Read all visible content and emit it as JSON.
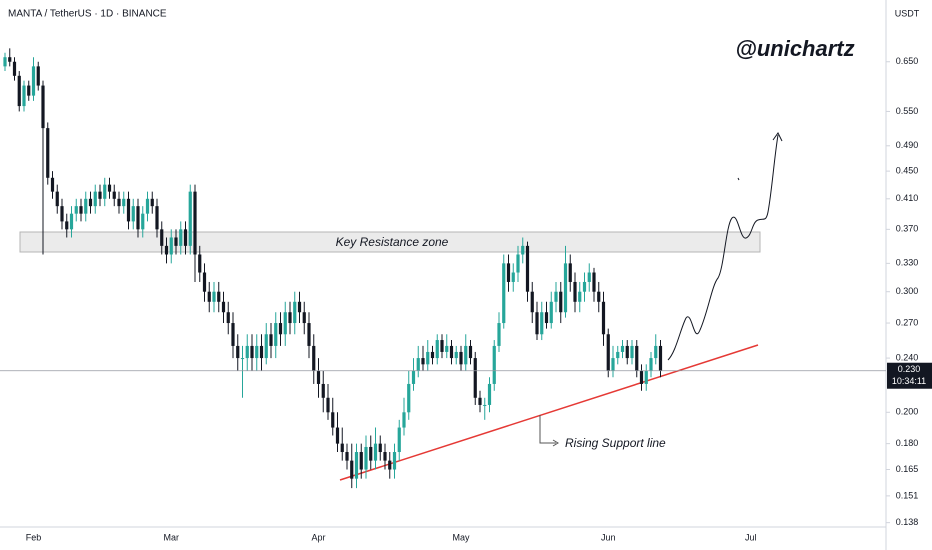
{
  "chart_data": {
    "type": "candlestick",
    "title": "MANTA / TetherUS · 1D · BINANCE",
    "y_unit": "USDT",
    "watermark": "@unichartz",
    "annotations": {
      "resistance": "Key Resistance zone",
      "support": "Rising Support line"
    },
    "log_scale": true,
    "grid": false,
    "up_color": "#26a69a",
    "down_color": "#131722",
    "ylim": [
      0.136,
      0.8
    ],
    "yticks": [
      {
        "value": 0.65,
        "label": "0.650"
      },
      {
        "value": 0.55,
        "label": "0.550"
      },
      {
        "value": 0.49,
        "label": "0.490"
      },
      {
        "value": 0.45,
        "label": "0.450"
      },
      {
        "value": 0.41,
        "label": "0.410"
      },
      {
        "value": 0.37,
        "label": "0.370"
      },
      {
        "value": 0.33,
        "label": "0.330"
      },
      {
        "value": 0.3,
        "label": "0.300"
      },
      {
        "value": 0.27,
        "label": "0.270"
      },
      {
        "value": 0.24,
        "label": "0.240"
      },
      {
        "value": 0.2,
        "label": "0.200"
      },
      {
        "value": 0.18,
        "label": "0.180"
      },
      0.165,
      0.151,
      0.138
    ],
    "last_price": {
      "value": 0.23,
      "label": "0.230"
    },
    "countdown": "10:34:11",
    "categories": [
      null,
      null,
      null,
      null,
      null,
      null,
      "Feb",
      null,
      null,
      null,
      null,
      null,
      null,
      null,
      null,
      null,
      null,
      null,
      null,
      null,
      null,
      null,
      null,
      null,
      null,
      null,
      null,
      null,
      null,
      null,
      null,
      null,
      null,
      null,
      null,
      "Mar",
      null,
      null,
      null,
      null,
      null,
      null,
      null,
      null,
      null,
      null,
      null,
      null,
      null,
      null,
      null,
      null,
      null,
      null,
      null,
      null,
      null,
      null,
      null,
      null,
      null,
      null,
      null,
      null,
      null,
      null,
      "Apr",
      null,
      null,
      null,
      null,
      null,
      null,
      null,
      null,
      null,
      null,
      null,
      null,
      null,
      null,
      null,
      null,
      null,
      null,
      null,
      null,
      null,
      null,
      null,
      null,
      null,
      null,
      null,
      null,
      null,
      "May",
      null,
      null,
      null,
      null,
      null,
      null,
      null,
      null,
      null,
      null,
      null,
      null,
      null,
      null,
      null,
      null,
      null,
      null,
      null,
      null,
      null,
      null,
      null,
      null,
      null,
      null,
      null,
      null,
      null,
      null,
      "Jun",
      null,
      null,
      null,
      null,
      null,
      null,
      null,
      null,
      null,
      null,
      null,
      null,
      null,
      null,
      null,
      null,
      null,
      null,
      null,
      null,
      null,
      null,
      null,
      null,
      null,
      null,
      null,
      null,
      null,
      "Jul",
      null,
      null,
      null,
      null,
      null,
      null,
      null,
      null,
      null,
      null,
      null,
      null,
      null,
      null,
      null,
      null,
      null,
      null,
      null,
      null,
      null,
      null,
      null,
      null,
      null,
      null,
      null,
      null
    ],
    "open": [
      0.64,
      0.66,
      0.65,
      0.62,
      0.56,
      0.6,
      0.58,
      0.64,
      0.6,
      0.52,
      0.44,
      0.42,
      0.4,
      0.38,
      0.37,
      0.39,
      0.4,
      0.39,
      0.41,
      0.4,
      0.42,
      0.41,
      0.43,
      0.42,
      0.41,
      0.4,
      0.41,
      0.38,
      0.4,
      0.37,
      0.39,
      0.41,
      0.4,
      0.37,
      0.35,
      0.34,
      0.36,
      0.35,
      0.37,
      0.35,
      0.42,
      0.34,
      0.32,
      0.3,
      0.29,
      0.3,
      0.29,
      0.28,
      0.27,
      0.25,
      0.24,
      0.24,
      0.25,
      0.24,
      0.25,
      0.24,
      0.26,
      0.25,
      0.27,
      0.26,
      0.28,
      0.27,
      0.29,
      0.28,
      0.27,
      0.25,
      0.23,
      0.22,
      0.21,
      0.2,
      0.19,
      0.18,
      0.175,
      0.17,
      0.16,
      0.175,
      0.165,
      0.178,
      0.17,
      0.18,
      0.175,
      0.17,
      0.165,
      0.175,
      0.19,
      0.2,
      0.22,
      0.23,
      0.24,
      0.235,
      0.245,
      0.24,
      0.255,
      0.245,
      0.25,
      0.24,
      0.245,
      0.235,
      0.25,
      0.24,
      0.21,
      0.205,
      0.205,
      0.22,
      0.25,
      0.27,
      0.33,
      0.31,
      0.32,
      0.34,
      0.35,
      0.3,
      0.28,
      0.26,
      0.28,
      0.27,
      0.29,
      0.3,
      0.28,
      0.33,
      0.31,
      0.29,
      0.3,
      0.31,
      0.32,
      0.3,
      0.29,
      0.26,
      0.23,
      0.24,
      0.245,
      0.25,
      0.24,
      0.25,
      0.23,
      0.22,
      0.23,
      0.24,
      0.25,
      null,
      null,
      null,
      null,
      null,
      null,
      null,
      null,
      null,
      null,
      null,
      null,
      null,
      null,
      null,
      null,
      null,
      null,
      null,
      null,
      null,
      null,
      null,
      null,
      null,
      null,
      null,
      null,
      null,
      null,
      null,
      null,
      null,
      null,
      null,
      null,
      null,
      null,
      null,
      null,
      null,
      null,
      null,
      null,
      null,
      null,
      null
    ],
    "high": [
      0.67,
      0.68,
      0.66,
      0.63,
      0.61,
      0.61,
      0.66,
      0.65,
      0.61,
      0.53,
      0.45,
      0.43,
      0.41,
      0.39,
      0.4,
      0.41,
      0.41,
      0.42,
      0.42,
      0.43,
      0.43,
      0.44,
      0.44,
      0.43,
      0.42,
      0.42,
      0.42,
      0.41,
      0.41,
      0.4,
      0.42,
      0.42,
      0.41,
      0.38,
      0.36,
      0.37,
      0.37,
      0.38,
      0.38,
      0.43,
      0.43,
      0.35,
      0.33,
      0.31,
      0.31,
      0.31,
      0.3,
      0.29,
      0.28,
      0.26,
      0.25,
      0.26,
      0.26,
      0.26,
      0.26,
      0.27,
      0.27,
      0.28,
      0.28,
      0.29,
      0.29,
      0.3,
      0.3,
      0.29,
      0.28,
      0.26,
      0.24,
      0.23,
      0.22,
      0.21,
      0.2,
      0.19,
      0.18,
      0.18,
      0.18,
      0.18,
      0.185,
      0.185,
      0.19,
      0.185,
      0.18,
      0.175,
      0.18,
      0.195,
      0.21,
      0.23,
      0.24,
      0.25,
      0.25,
      0.255,
      0.25,
      0.26,
      0.26,
      0.26,
      0.255,
      0.25,
      0.25,
      0.26,
      0.255,
      0.245,
      0.215,
      0.21,
      0.225,
      0.255,
      0.28,
      0.34,
      0.34,
      0.33,
      0.35,
      0.36,
      0.355,
      0.31,
      0.29,
      0.29,
      0.29,
      0.3,
      0.31,
      0.31,
      0.35,
      0.34,
      0.32,
      0.31,
      0.32,
      0.33,
      0.325,
      0.31,
      0.3,
      0.265,
      0.25,
      0.25,
      0.255,
      0.255,
      0.255,
      0.255,
      0.235,
      0.235,
      0.245,
      0.26,
      0.255,
      null,
      null,
      null,
      null,
      null,
      null,
      null,
      null,
      null,
      null,
      null,
      null,
      null,
      null,
      null,
      null,
      null,
      null,
      null,
      null,
      null,
      null,
      null,
      null,
      null,
      null,
      null,
      null,
      null,
      null,
      null,
      null,
      null,
      null,
      null,
      null,
      null,
      null,
      null,
      null,
      null,
      null,
      null,
      null,
      null,
      null,
      null
    ],
    "low": [
      0.63,
      0.64,
      0.61,
      0.55,
      0.55,
      0.57,
      0.57,
      0.59,
      0.34,
      0.43,
      0.41,
      0.39,
      0.37,
      0.36,
      0.36,
      0.38,
      0.38,
      0.38,
      0.39,
      0.39,
      0.4,
      0.4,
      0.41,
      0.4,
      0.39,
      0.39,
      0.37,
      0.37,
      0.36,
      0.36,
      0.38,
      0.39,
      0.36,
      0.34,
      0.33,
      0.33,
      0.34,
      0.34,
      0.34,
      0.34,
      0.31,
      0.31,
      0.29,
      0.28,
      0.28,
      0.28,
      0.27,
      0.26,
      0.24,
      0.23,
      0.21,
      0.23,
      0.23,
      0.23,
      0.23,
      0.235,
      0.24,
      0.24,
      0.25,
      0.25,
      0.26,
      0.26,
      0.27,
      0.26,
      0.24,
      0.22,
      0.21,
      0.2,
      0.195,
      0.185,
      0.175,
      0.17,
      0.165,
      0.155,
      0.155,
      0.16,
      0.16,
      0.165,
      0.165,
      0.17,
      0.165,
      0.16,
      0.16,
      0.17,
      0.185,
      0.195,
      0.215,
      0.225,
      0.23,
      0.23,
      0.235,
      0.235,
      0.24,
      0.24,
      0.235,
      0.235,
      0.23,
      0.23,
      0.235,
      0.205,
      0.2,
      0.195,
      0.2,
      0.215,
      0.245,
      0.265,
      0.3,
      0.3,
      0.31,
      0.33,
      0.29,
      0.27,
      0.255,
      0.255,
      0.265,
      0.265,
      0.28,
      0.27,
      0.275,
      0.3,
      0.28,
      0.28,
      0.29,
      0.3,
      0.29,
      0.28,
      0.25,
      0.225,
      0.225,
      0.235,
      0.24,
      0.235,
      0.235,
      0.225,
      0.215,
      0.215,
      0.225,
      0.235,
      0.225,
      null,
      null,
      null,
      null,
      null,
      null,
      null,
      null,
      null,
      null,
      null,
      null,
      null,
      null,
      null,
      null,
      null,
      null,
      null,
      null,
      null,
      null,
      null,
      null,
      null,
      null,
      null,
      null,
      null,
      null,
      null,
      null,
      null,
      null,
      null,
      null,
      null,
      null,
      null,
      null,
      null,
      null,
      null,
      null,
      null,
      null,
      null
    ],
    "close": [
      0.66,
      0.65,
      0.62,
      0.56,
      0.6,
      0.58,
      0.64,
      0.6,
      0.52,
      0.44,
      0.42,
      0.4,
      0.38,
      0.37,
      0.39,
      0.4,
      0.39,
      0.41,
      0.4,
      0.42,
      0.41,
      0.43,
      0.42,
      0.41,
      0.4,
      0.41,
      0.38,
      0.4,
      0.37,
      0.39,
      0.41,
      0.4,
      0.37,
      0.35,
      0.34,
      0.36,
      0.35,
      0.37,
      0.35,
      0.42,
      0.34,
      0.32,
      0.3,
      0.29,
      0.3,
      0.29,
      0.28,
      0.27,
      0.25,
      0.24,
      0.24,
      0.25,
      0.24,
      0.25,
      0.24,
      0.26,
      0.25,
      0.27,
      0.26,
      0.28,
      0.27,
      0.29,
      0.28,
      0.27,
      0.25,
      0.23,
      0.22,
      0.21,
      0.2,
      0.19,
      0.18,
      0.175,
      0.17,
      0.16,
      0.175,
      0.165,
      0.178,
      0.17,
      0.18,
      0.175,
      0.17,
      0.165,
      0.175,
      0.19,
      0.2,
      0.22,
      0.23,
      0.24,
      0.235,
      0.245,
      0.24,
      0.255,
      0.245,
      0.25,
      0.24,
      0.245,
      0.235,
      0.25,
      0.24,
      0.21,
      0.205,
      0.205,
      0.22,
      0.25,
      0.27,
      0.33,
      0.31,
      0.32,
      0.34,
      0.35,
      0.3,
      0.28,
      0.26,
      0.28,
      0.27,
      0.29,
      0.3,
      0.28,
      0.33,
      0.31,
      0.29,
      0.3,
      0.31,
      0.32,
      0.3,
      0.29,
      0.26,
      0.23,
      0.24,
      0.245,
      0.25,
      0.24,
      0.25,
      0.23,
      0.22,
      0.23,
      0.24,
      0.25,
      0.23,
      null,
      null,
      null,
      null,
      null,
      null,
      null,
      null,
      null,
      null,
      null,
      null,
      null,
      null,
      null,
      null,
      null,
      null,
      null,
      null,
      null,
      null,
      null,
      null,
      null,
      null,
      null,
      null,
      null,
      null,
      null,
      null,
      null,
      null,
      null,
      null,
      null,
      null,
      null,
      null,
      null,
      null,
      null,
      null,
      null,
      null,
      null
    ]
  }
}
